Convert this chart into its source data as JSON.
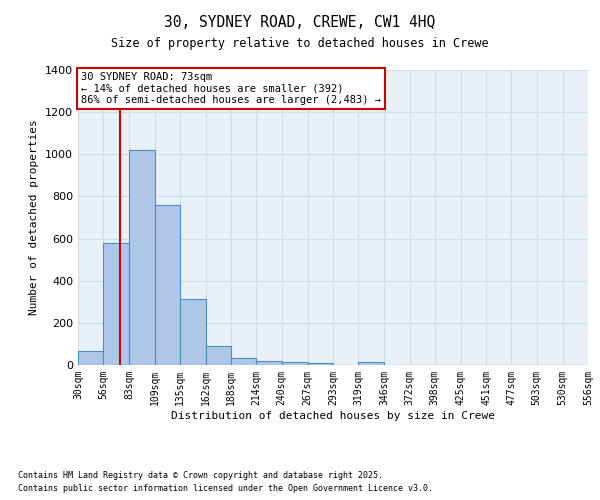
{
  "title1": "30, SYDNEY ROAD, CREWE, CW1 4HQ",
  "title2": "Size of property relative to detached houses in Crewe",
  "xlabel": "Distribution of detached houses by size in Crewe",
  "ylabel": "Number of detached properties",
  "bin_edges": [
    30,
    56,
    83,
    109,
    135,
    162,
    188,
    214,
    240,
    267,
    293,
    319,
    346,
    372,
    398,
    425,
    451,
    477,
    503,
    530,
    556
  ],
  "bar_heights": [
    65,
    580,
    1020,
    760,
    315,
    90,
    35,
    20,
    15,
    10,
    0,
    15,
    0,
    0,
    0,
    0,
    0,
    0,
    0,
    0
  ],
  "bar_color": "#aec6e8",
  "bar_edge_color": "#4a90c4",
  "bar_edge_width": 0.8,
  "bg_color": "#e8f0f8",
  "grid_color": "#d0dce8",
  "vline_x": 73,
  "vline_color": "#cc0000",
  "ylim": [
    0,
    1400
  ],
  "yticks": [
    0,
    200,
    400,
    600,
    800,
    1000,
    1200,
    1400
  ],
  "annotation_text": "30 SYDNEY ROAD: 73sqm\n← 14% of detached houses are smaller (392)\n86% of semi-detached houses are larger (2,483) →",
  "footer1": "Contains HM Land Registry data © Crown copyright and database right 2025.",
  "footer2": "Contains public sector information licensed under the Open Government Licence v3.0.",
  "tick_labels": [
    "30sqm",
    "56sqm",
    "83sqm",
    "109sqm",
    "135sqm",
    "162sqm",
    "188sqm",
    "214sqm",
    "240sqm",
    "267sqm",
    "293sqm",
    "319sqm",
    "346sqm",
    "372sqm",
    "398sqm",
    "425sqm",
    "451sqm",
    "477sqm",
    "503sqm",
    "530sqm",
    "556sqm"
  ]
}
